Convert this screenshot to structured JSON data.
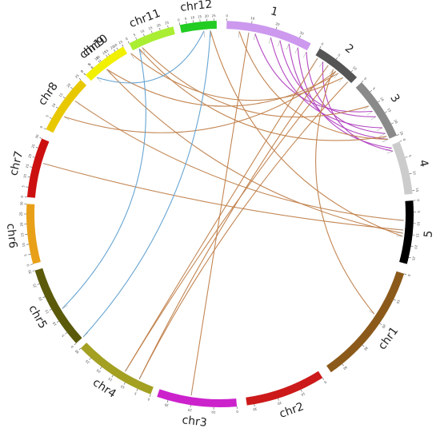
{
  "chromosomes": [
    {
      "id": "1",
      "label": "1",
      "length": 35,
      "color": "#cc99ee",
      "start_deg": 2,
      "end_deg": 28
    },
    {
      "id": "2",
      "label": "2",
      "length": 12,
      "color": "#555555",
      "start_deg": 31,
      "end_deg": 45
    },
    {
      "id": "3",
      "label": "3",
      "length": 25,
      "color": "#8a8a8a",
      "start_deg": 47,
      "end_deg": 66
    },
    {
      "id": "4",
      "label": "4",
      "length": 16,
      "color": "#cccccc",
      "start_deg": 68,
      "end_deg": 84
    },
    {
      "id": "5",
      "label": "5",
      "length": 28,
      "color": "#000000",
      "start_deg": 86,
      "end_deg": 105
    },
    {
      "id": "chr1",
      "label": "chr1",
      "length": 45,
      "color": "#8b5a1a",
      "start_deg": 108,
      "end_deg": 145
    },
    {
      "id": "chr2",
      "label": "chr2",
      "length": 33,
      "color": "#cc1a1a",
      "start_deg": 148,
      "end_deg": 172
    },
    {
      "id": "chr3",
      "label": "chr3",
      "length": 35,
      "color": "#cc22cc",
      "start_deg": 175,
      "end_deg": 199
    },
    {
      "id": "chr4",
      "label": "chr4",
      "length": 30,
      "color": "#a3a022",
      "start_deg": 201,
      "end_deg": 226
    },
    {
      "id": "chr5",
      "label": "chr5",
      "length": 30,
      "color": "#5a5a0a",
      "start_deg": 228,
      "end_deg": 253
    },
    {
      "id": "chr6",
      "label": "chr6",
      "length": 30,
      "color": "#e8a018",
      "start_deg": 255,
      "end_deg": 273
    },
    {
      "id": "chr7",
      "label": "chr7",
      "length": 30,
      "color": "#cc1010",
      "start_deg": 275,
      "end_deg": 293
    },
    {
      "id": "chr8",
      "label": "chr8",
      "length": 25,
      "color": "#e8c800",
      "start_deg": 296,
      "end_deg": 314
    },
    {
      "id": "chr9",
      "label": "chr9",
      "length": 23,
      "color": "#f0c8c0",
      "start_deg": 316,
      "end_deg": 330
    },
    {
      "id": "chr10",
      "label": "chr10",
      "length": 25,
      "color": "#f0f000",
      "start_deg": 332,
      "end_deg": 345
    },
    {
      "id": "chr11",
      "label": "chr11",
      "length": 28,
      "color": "#aaee33",
      "start_deg": 347,
      "end_deg": 371
    },
    {
      "id": "chr12",
      "label": "chr12",
      "length": 27,
      "color": "#22cc22",
      "start_deg": 372,
      "end_deg": 358
    }
  ],
  "link_colors": {
    "brown": "#c0804a",
    "purple": "#b040c0",
    "blue": "#60a0d0"
  },
  "links": [
    {
      "color": "purple",
      "a": 16,
      "b": 62
    },
    {
      "color": "purple",
      "a": 19,
      "b": 58
    },
    {
      "color": "purple",
      "a": 22,
      "b": 66
    },
    {
      "color": "purple",
      "a": 25,
      "b": 69
    },
    {
      "color": "purple",
      "a": 28,
      "b": 64
    },
    {
      "color": "purple",
      "a": 34,
      "b": 70
    },
    {
      "color": "purple",
      "a": 11,
      "b": 56
    },
    {
      "color": "brown",
      "a": 6,
      "b": 66
    },
    {
      "color": "brown",
      "a": 9,
      "b": 189
    },
    {
      "color": "brown",
      "a": 36,
      "b": 206
    },
    {
      "color": "brown",
      "a": 32,
      "b": 211
    },
    {
      "color": "brown",
      "a": 39,
      "b": 211
    },
    {
      "color": "brown",
      "a": 44,
      "b": 206
    },
    {
      "color": "brown",
      "a": 42,
      "b": 331
    },
    {
      "color": "brown",
      "a": 39,
      "b": 302
    },
    {
      "color": "brown",
      "a": 40,
      "b": 322
    },
    {
      "color": "brown",
      "a": 54,
      "b": 335
    },
    {
      "color": "brown",
      "a": 92,
      "b": 308
    },
    {
      "color": "brown",
      "a": 95,
      "b": 286
    },
    {
      "color": "brown",
      "a": 96,
      "b": 322
    },
    {
      "color": "brown",
      "a": 123,
      "b": 38
    },
    {
      "color": "brown",
      "a": 357,
      "b": 97
    },
    {
      "color": "brown",
      "a": 334,
      "b": 65
    },
    {
      "color": "blue",
      "a": 357,
      "b": 228
    },
    {
      "color": "blue",
      "a": 334,
      "b": 239
    },
    {
      "color": "blue",
      "a": 355,
      "b": 318
    }
  ]
}
